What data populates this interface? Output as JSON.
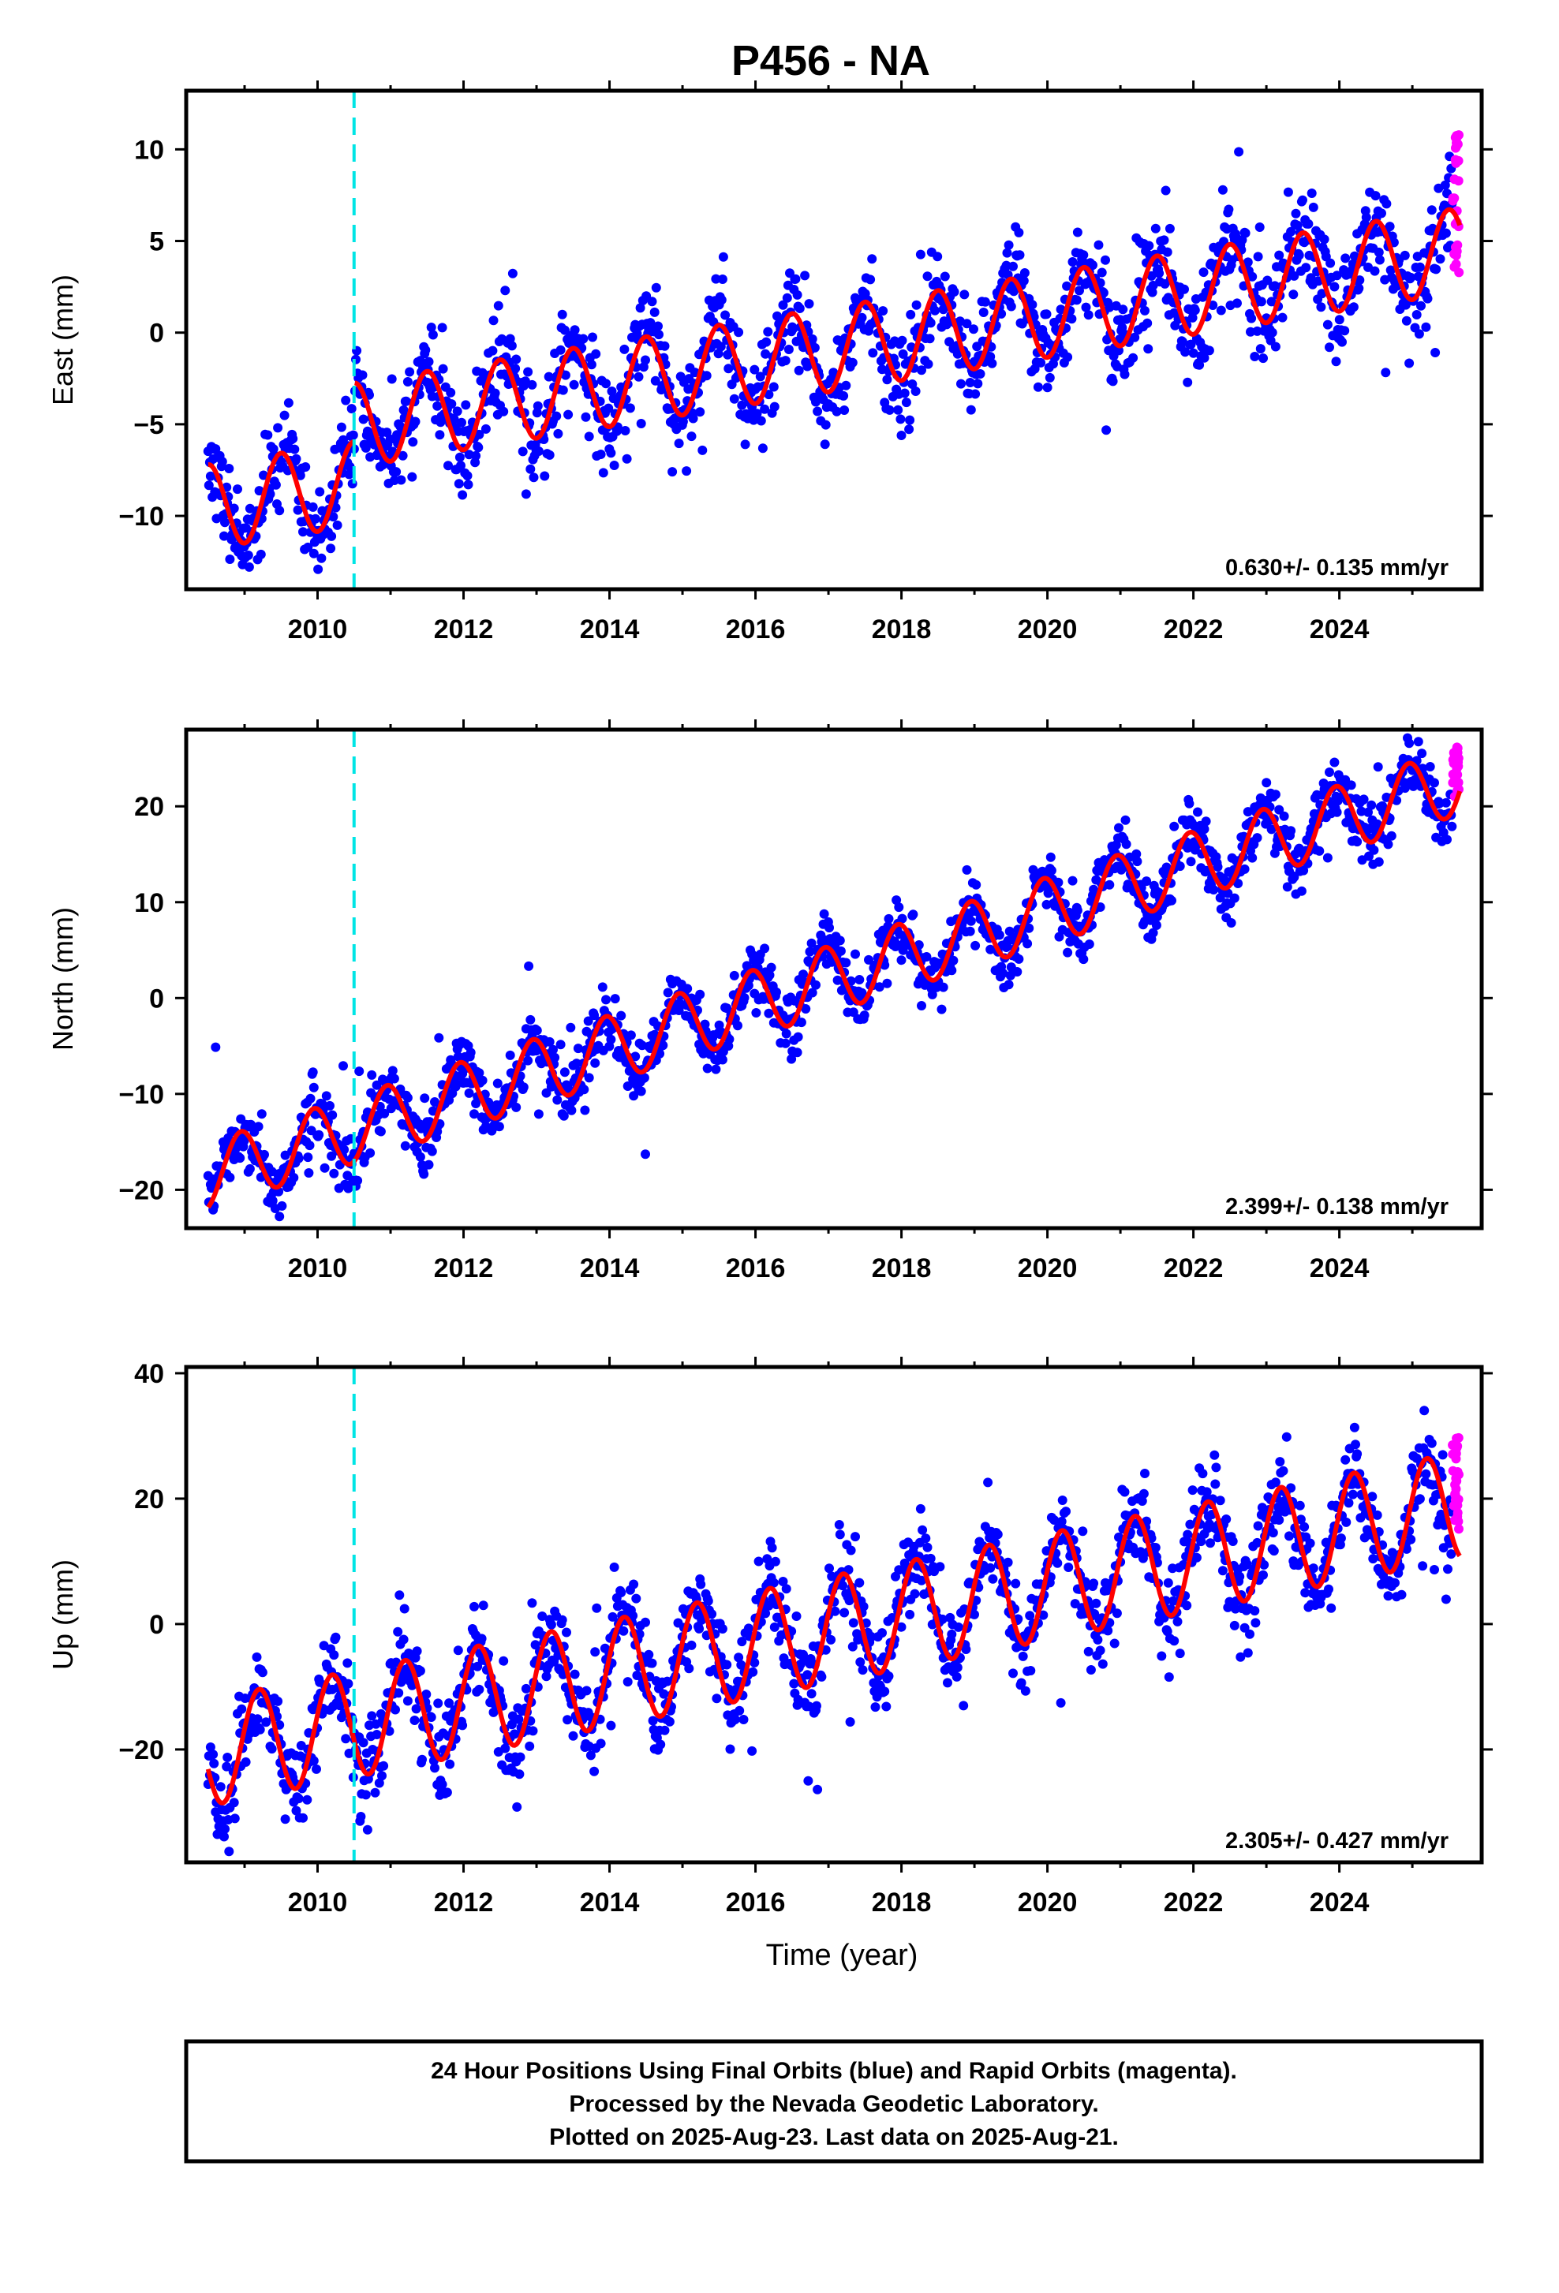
{
  "title": "P456 - NA",
  "footer": {
    "lines": [
      "24 Hour Positions Using Final Orbits (blue) and Rapid Orbits (magenta).",
      "Processed by the Nevada Geodetic Laboratory.",
      "Plotted on 2025-Aug-23. Last data on 2025-Aug-21."
    ]
  },
  "colors": {
    "final_points": "#0000ff",
    "rapid_points": "#ff00ff",
    "model": "#ff0000",
    "event_line": "#00e5e5",
    "frame": "#000000"
  },
  "chart_data": [
    {
      "type": "scatter",
      "panel": "east",
      "ylabel": "East (mm)",
      "xlabel": "",
      "ylim": [
        -14,
        13.2
      ],
      "yticks": [
        -10,
        -5,
        0,
        5,
        10
      ],
      "xlim": [
        2008.2,
        2025.95
      ],
      "xticks": [
        2010,
        2012,
        2014,
        2016,
        2018,
        2020,
        2022,
        2024
      ],
      "xtick_labels": [
        "2010",
        "2012",
        "2014",
        "2016",
        "2018",
        "2020",
        "2022",
        "2024"
      ],
      "event_line_x": 2010.5,
      "rate_label": "0.630+/- 0.135 mm/yr",
      "grid": false,
      "model": {
        "start": 2008.5,
        "end": 2025.65,
        "anchor_t": 2008.5,
        "anchor_y": -9.5,
        "slope": 0.63,
        "amplitude": 2.3,
        "peak_phase": 0.0,
        "offset_at": 2010.5,
        "offset": 3.2
      },
      "scatter_sigma": 1.3,
      "rapid": {
        "from": 2025.55,
        "to": 2025.64,
        "y_range": [
          3.2,
          10.8
        ]
      },
      "series": [
        {
          "name": "Final Orbits (blue)",
          "color": "#0000ff",
          "x_range": [
            2008.5,
            2025.55
          ]
        },
        {
          "name": "Rapid Orbits (magenta)",
          "color": "#ff00ff",
          "x_range": [
            2025.55,
            2025.64
          ]
        }
      ]
    },
    {
      "type": "scatter",
      "panel": "north",
      "ylabel": "North (mm)",
      "xlabel": "",
      "ylim": [
        -24,
        28
      ],
      "yticks": [
        -20,
        -10,
        0,
        10,
        20
      ],
      "xlim": [
        2008.2,
        2025.95
      ],
      "xticks": [
        2010,
        2012,
        2014,
        2016,
        2018,
        2020,
        2022,
        2024
      ],
      "xtick_labels": [
        "2010",
        "2012",
        "2014",
        "2016",
        "2018",
        "2020",
        "2022",
        "2024"
      ],
      "event_line_x": 2010.5,
      "rate_label": "2.399+/- 0.138 mm/yr",
      "grid": false,
      "model": {
        "start": 2008.5,
        "end": 2025.65,
        "anchor_t": 2008.5,
        "anchor_y": -18.5,
        "slope": 2.4,
        "amplitude": 3.5,
        "peak_phase": 0.45,
        "offset_at": null,
        "offset": 0
      },
      "scatter_sigma": 1.6,
      "rapid": {
        "from": 2025.55,
        "to": 2025.64,
        "y_range": [
          21,
          26.5
        ]
      },
      "series": [
        {
          "name": "Final Orbits (blue)",
          "color": "#0000ff",
          "x_range": [
            2008.5,
            2025.55
          ]
        },
        {
          "name": "Rapid Orbits (magenta)",
          "color": "#ff00ff",
          "x_range": [
            2025.55,
            2025.64
          ]
        }
      ]
    },
    {
      "type": "scatter",
      "panel": "up",
      "ylabel": "Up (mm)",
      "xlabel": "Time (year)",
      "ylim": [
        -38,
        41
      ],
      "yticks": [
        -20,
        0,
        20,
        40
      ],
      "xlim": [
        2008.2,
        2025.95
      ],
      "xticks": [
        2010,
        2012,
        2014,
        2016,
        2018,
        2020,
        2022,
        2024
      ],
      "xtick_labels": [
        "2010",
        "2012",
        "2014",
        "2016",
        "2018",
        "2020",
        "2022",
        "2024"
      ],
      "event_line_x": 2010.5,
      "rate_label": "2.305+/- 0.427 mm/yr",
      "grid": false,
      "model": {
        "start": 2008.5,
        "end": 2025.65,
        "anchor_t": 2008.5,
        "anchor_y": -20.5,
        "slope": 2.3,
        "amplitude": 8.5,
        "peak_phase": 0.7,
        "offset_at": null,
        "offset": 0
      },
      "scatter_sigma": 3.8,
      "rapid": {
        "from": 2025.55,
        "to": 2025.64,
        "y_range": [
          15,
          30.5
        ]
      },
      "series": [
        {
          "name": "Final Orbits (blue)",
          "color": "#0000ff",
          "x_range": [
            2008.5,
            2025.55
          ]
        },
        {
          "name": "Rapid Orbits (magenta)",
          "color": "#ff00ff",
          "x_range": [
            2025.55,
            2025.64
          ]
        }
      ]
    }
  ]
}
